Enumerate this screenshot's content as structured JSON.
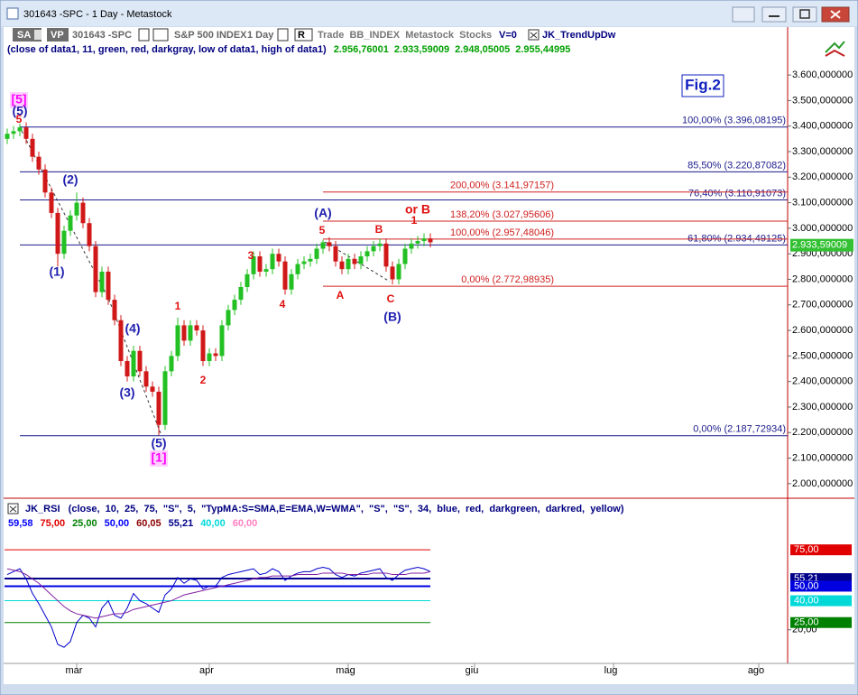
{
  "window": {
    "title": "301643 -SPC - 1 Day - Metastock"
  },
  "toolbar": {
    "sa": "SA",
    "vp": "VP",
    "symbol": "301643 -SPC",
    "name": "S&P 500 INDEX",
    "period": "1 Day",
    "r": "R",
    "info": "Trade  BB_INDEX  Metastock  Stocks",
    "v": "V=0",
    "indicator": "JK_TrendUpDw"
  },
  "chart_data": {
    "type": "candlestick",
    "header": "(close of data1, 11, green, red, darkgray, low of data1, high of data1)",
    "header_values": [
      "2.956,76001",
      "2.933,59009",
      "2.948,05005",
      "2.955,44995"
    ],
    "header_color": "#000080",
    "header_values_color": "#00a000",
    "categories": [
      null,
      null,
      null,
      null,
      null,
      null,
      null,
      null,
      null,
      null,
      null,
      "mar",
      null,
      null,
      null,
      null,
      null,
      null,
      null,
      null,
      null,
      null,
      null,
      null,
      null,
      null,
      null,
      null,
      null,
      null,
      null,
      null,
      "apr",
      null,
      null,
      null,
      null,
      null,
      null,
      null,
      null,
      null,
      null,
      null,
      null,
      null,
      null,
      null,
      null,
      null,
      null,
      null,
      null,
      null,
      "mag",
      null,
      null,
      null,
      null,
      null,
      null,
      null,
      null,
      null,
      null,
      null,
      null,
      null,
      null,
      null,
      null,
      null,
      null,
      null,
      "giu",
      null,
      null,
      null,
      null,
      null,
      null,
      null,
      null,
      null,
      null,
      null,
      null,
      null,
      null,
      null,
      null,
      null,
      null,
      null,
      null,
      null,
      "lug",
      null,
      null,
      null,
      null,
      null,
      null,
      null,
      null,
      null,
      null,
      null,
      null,
      null,
      null,
      null,
      null,
      null,
      null,
      null,
      null,
      null,
      null,
      "ago",
      null,
      null,
      null,
      null
    ],
    "open": [
      3350,
      3370,
      3380,
      3395,
      3350,
      3280,
      3230,
      3140,
      3060,
      2900,
      2990,
      3050,
      3100,
      3020,
      2930,
      2750,
      2830,
      2720,
      2640,
      2480,
      2420,
      2520,
      2440,
      2380,
      2360,
      2230,
      2440,
      2500,
      2620,
      2560,
      2620,
      2600,
      2480,
      2510,
      2500,
      2620,
      2680,
      2720,
      2770,
      2820,
      2890,
      2830,
      2840,
      2900,
      2870,
      2760,
      2820,
      2860,
      2870,
      2880,
      2920,
      2945,
      2930,
      2870,
      2840,
      2880,
      2860,
      2890,
      2910,
      2930,
      2940,
      2850,
      2800,
      2860,
      2920,
      2940,
      2950,
      2960,
      null,
      null,
      null,
      null,
      null,
      null,
      null,
      null,
      null,
      null,
      null,
      null,
      null,
      null,
      null,
      null,
      null,
      null,
      null,
      null,
      null,
      null,
      null,
      null,
      null,
      null,
      null,
      null,
      null,
      null,
      null,
      null,
      null,
      null,
      null,
      null,
      null,
      null,
      null,
      null,
      null,
      null,
      null,
      null,
      null,
      null,
      null,
      null,
      null,
      null,
      null,
      null,
      null,
      null,
      null,
      null
    ],
    "high": [
      3390,
      3400,
      3410,
      3415,
      3370,
      3300,
      3250,
      3160,
      3080,
      3010,
      3070,
      3140,
      3120,
      3040,
      2950,
      2850,
      2850,
      2740,
      2660,
      2500,
      2540,
      2540,
      2460,
      2400,
      2380,
      2460,
      2520,
      2650,
      2640,
      2640,
      2640,
      2620,
      2530,
      2530,
      2640,
      2700,
      2740,
      2790,
      2840,
      2910,
      2910,
      2860,
      2920,
      2920,
      2890,
      2840,
      2880,
      2890,
      2900,
      2940,
      2955,
      2965,
      2950,
      2890,
      2900,
      2900,
      2910,
      2930,
      2950,
      2960,
      2960,
      2870,
      2880,
      2940,
      2960,
      2970,
      2980,
      2980,
      null,
      null,
      null,
      null,
      null,
      null,
      null,
      null,
      null,
      null,
      null,
      null,
      null,
      null,
      null,
      null,
      null,
      null,
      null,
      null,
      null,
      null,
      null,
      null,
      null,
      null,
      null,
      null,
      null,
      null,
      null,
      null,
      null,
      null,
      null,
      null,
      null,
      null,
      null,
      null,
      null,
      null,
      null,
      null,
      null,
      null,
      null,
      null,
      null,
      null,
      null,
      null,
      null,
      null,
      null,
      null
    ],
    "low": [
      3330,
      3350,
      3360,
      3330,
      3260,
      3210,
      3120,
      3040,
      2850,
      2880,
      2970,
      3030,
      3000,
      2910,
      2730,
      2730,
      2700,
      2620,
      2460,
      2400,
      2400,
      2420,
      2360,
      2340,
      2190,
      2210,
      2420,
      2480,
      2540,
      2540,
      2580,
      2460,
      2460,
      2480,
      2480,
      2600,
      2660,
      2700,
      2750,
      2800,
      2810,
      2810,
      2820,
      2850,
      2740,
      2740,
      2800,
      2840,
      2850,
      2860,
      2900,
      2910,
      2850,
      2820,
      2820,
      2840,
      2840,
      2870,
      2890,
      2910,
      2830,
      2780,
      2780,
      2840,
      2900,
      2920,
      2930,
      2925,
      null,
      null,
      null,
      null,
      null,
      null,
      null,
      null,
      null,
      null,
      null,
      null,
      null,
      null,
      null,
      null,
      null,
      null,
      null,
      null,
      null,
      null,
      null,
      null,
      null,
      null,
      null,
      null,
      null,
      null,
      null,
      null,
      null,
      null,
      null,
      null,
      null,
      null,
      null,
      null,
      null,
      null,
      null,
      null,
      null,
      null,
      null,
      null,
      null,
      null,
      null,
      null,
      null,
      null,
      null,
      null
    ],
    "close": [
      3370,
      3380,
      3395,
      3350,
      3280,
      3230,
      3140,
      3060,
      2900,
      2990,
      3050,
      3100,
      3020,
      2930,
      2750,
      2830,
      2720,
      2640,
      2480,
      2420,
      2520,
      2440,
      2380,
      2360,
      2230,
      2440,
      2500,
      2620,
      2560,
      2620,
      2600,
      2480,
      2510,
      2500,
      2620,
      2680,
      2720,
      2770,
      2820,
      2890,
      2830,
      2840,
      2900,
      2870,
      2760,
      2820,
      2860,
      2870,
      2880,
      2920,
      2945,
      2930,
      2870,
      2840,
      2880,
      2860,
      2890,
      2910,
      2930,
      2940,
      2850,
      2800,
      2860,
      2920,
      2940,
      2950,
      2960,
      2945,
      null,
      null,
      null,
      null,
      null,
      null,
      null,
      null,
      null,
      null,
      null,
      null,
      null,
      null,
      null,
      null,
      null,
      null,
      null,
      null,
      null,
      null,
      null,
      null,
      null,
      null,
      null,
      null,
      null,
      null,
      null,
      null,
      null,
      null,
      null,
      null,
      null,
      null,
      null,
      null,
      null,
      null,
      null,
      null,
      null,
      null,
      null,
      null,
      null,
      null,
      null,
      null,
      null,
      null,
      null,
      null
    ],
    "up_color": "#22c022",
    "down_color": "#d01818",
    "ylim": [
      1950,
      3770
    ],
    "yticks": [
      {
        "value": 2000,
        "label": "2.000,000000"
      },
      {
        "value": 2100,
        "label": "2.100,000000"
      },
      {
        "value": 2200,
        "label": "2.200,000000"
      },
      {
        "value": 2300,
        "label": "2.300,000000"
      },
      {
        "value": 2400,
        "label": "2.400,000000"
      },
      {
        "value": 2500,
        "label": "2.500,000000"
      },
      {
        "value": 2600,
        "label": "2.600,000000"
      },
      {
        "value": 2700,
        "label": "2.700,000000"
      },
      {
        "value": 2800,
        "label": "2.800,000000"
      },
      {
        "value": 2900,
        "label": "2.900,000000"
      },
      {
        "value": 3000,
        "label": "3.000,000000"
      },
      {
        "value": 3100,
        "label": "3.100,000000"
      },
      {
        "value": 3200,
        "label": "3.200,000000"
      },
      {
        "value": 3300,
        "label": "3.300,000000"
      },
      {
        "value": 3400,
        "label": "3.400,000000"
      },
      {
        "value": 3500,
        "label": "3.500,000000"
      },
      {
        "value": 3600,
        "label": "3.600,000000"
      }
    ],
    "levels": [
      {
        "value": 3396.08195,
        "label": "100,00% (3.396,08195)",
        "color": "#1c1c8c"
      },
      {
        "value": 3220.87082,
        "label": "85,50% (3.220,87082)",
        "color": "#1c1c8c"
      },
      {
        "value": 3110.91073,
        "label": "76,40% (3.110,91073)",
        "color": "#1c1c8c"
      },
      {
        "value": 2934.49125,
        "label": "61,80% (2.934,49125)",
        "color": "#1c1c8c"
      },
      {
        "value": 2187.72934,
        "label": "0,00% (2.187,72934)",
        "color": "#1c1c8c"
      },
      {
        "value": 3141.97157,
        "label": "200,00% (3.141,97157)",
        "color": "#d02020"
      },
      {
        "value": 3027.95606,
        "label": "138,20% (3.027,95606)",
        "color": "#d02020"
      },
      {
        "value": 2957.48046,
        "label": "100,00% (2.957,48046)",
        "color": "#d02020"
      },
      {
        "value": 2772.98935,
        "label": "0,00% (2.772,98935)",
        "color": "#d02020"
      }
    ],
    "last_price": {
      "value": 2933.59009,
      "label": "2.933,59009",
      "color": "#33c033"
    },
    "annotations": [
      {
        "text": "[5]",
        "color": "#ff00ff"
      },
      {
        "text": "(5)",
        "color": "#2020b0"
      },
      {
        "text": "5",
        "color": "#e01010"
      },
      {
        "text": "(2)",
        "color": "#2020b0"
      },
      {
        "text": "(1)",
        "color": "#2020b0"
      },
      {
        "text": "(4)",
        "color": "#2020b0"
      },
      {
        "text": "(3)",
        "color": "#2020b0"
      },
      {
        "text": "(5)",
        "color": "#2020b0"
      },
      {
        "text": "[1]",
        "color": "#ff00ff"
      },
      {
        "text": "1",
        "color": "#e01010"
      },
      {
        "text": "2",
        "color": "#e01010"
      },
      {
        "text": "3",
        "color": "#e01010"
      },
      {
        "text": "4",
        "color": "#e01010"
      },
      {
        "text": "(A)",
        "color": "#2020b0"
      },
      {
        "text": "5",
        "color": "#e01010"
      },
      {
        "text": "A",
        "color": "#e01010"
      },
      {
        "text": "B",
        "color": "#e01010"
      },
      {
        "text": "C",
        "color": "#e01010"
      },
      {
        "text": "(B)",
        "color": "#2020b0"
      },
      {
        "text": "or B",
        "color": "#e01010"
      },
      {
        "text": "1",
        "color": "#e01010"
      },
      {
        "text": "Fig.2",
        "color": "#1020c0"
      }
    ],
    "indicator": {
      "title": "JK_RSI   (close,  10,  25,  75,  \"S\",  5,  \"TypMA:S=SMA,E=EMA,W=WMA\",  \"S\",  \"S\",  34,  blue,  red,  darkgreen,  darkred,  yellow)",
      "legend_values": [
        {
          "text": "59,58",
          "color": "#0000ff"
        },
        {
          "text": "75,00",
          "color": "#e00000"
        },
        {
          "text": "25,00",
          "color": "#008000"
        },
        {
          "text": "50,00",
          "color": "#0000ff"
        },
        {
          "text": "60,05",
          "color": "#8b0000"
        },
        {
          "text": "55,21",
          "color": "#00008b"
        },
        {
          "text": "40,00",
          "color": "#00d8d8"
        },
        {
          "text": "60,00",
          "color": "#ff80c0"
        }
      ],
      "ylim": [
        0,
        90
      ],
      "yticks": [
        {
          "value": 20,
          "label": "20,00"
        }
      ],
      "levels": [
        {
          "value": 75,
          "label": "75,00",
          "color": "#e00000"
        },
        {
          "value": 55.21,
          "label": "55,21",
          "color": "#00008b"
        },
        {
          "value": 50,
          "label": "50,00",
          "color": "#0000e0"
        },
        {
          "value": 40,
          "label": "40,00",
          "color": "#00d8d8"
        },
        {
          "value": 25,
          "label": "25,00",
          "color": "#008000"
        }
      ],
      "series": [
        {
          "color": "#0000cc",
          "values": [
            58,
            60,
            62,
            55,
            45,
            38,
            30,
            22,
            10,
            8,
            12,
            25,
            30,
            28,
            22,
            35,
            40,
            30,
            28,
            35,
            45,
            40,
            38,
            35,
            32,
            44,
            48,
            56,
            52,
            55,
            54,
            48,
            50,
            50,
            56,
            58,
            59,
            60,
            61,
            62,
            58,
            59,
            62,
            60,
            54,
            57,
            59,
            60,
            60,
            62,
            63,
            62,
            58,
            56,
            58,
            57,
            59,
            60,
            61,
            62,
            56,
            54,
            58,
            61,
            62,
            63,
            62,
            60,
            null,
            null,
            null,
            null,
            null,
            null,
            null,
            null,
            null,
            null,
            null,
            null,
            null,
            null,
            null,
            null,
            null,
            null,
            null,
            null,
            null,
            null,
            null,
            null,
            null,
            null,
            null,
            null,
            null,
            null,
            null,
            null,
            null,
            null,
            null,
            null,
            null,
            null,
            null,
            null,
            null,
            null,
            null,
            null,
            null,
            null,
            null,
            null,
            null,
            null,
            null,
            null,
            null,
            null,
            null,
            null
          ]
        },
        {
          "color": "#8020a0",
          "values": [
            62,
            61,
            60,
            58,
            55,
            52,
            48,
            44,
            40,
            36,
            33,
            31,
            30,
            29,
            28,
            29,
            30,
            31,
            31,
            32,
            34,
            35,
            36,
            37,
            38,
            39,
            40,
            42,
            44,
            45,
            46,
            47,
            48,
            49,
            50,
            51,
            52,
            53,
            54,
            55,
            56,
            56,
            57,
            57,
            57,
            57,
            58,
            58,
            58,
            58,
            59,
            59,
            59,
            59,
            58,
            58,
            58,
            58,
            59,
            59,
            59,
            58,
            58,
            58,
            59,
            59,
            59,
            60,
            null,
            null,
            null,
            null,
            null,
            null,
            null,
            null,
            null,
            null,
            null,
            null,
            null,
            null,
            null,
            null,
            null,
            null,
            null,
            null,
            null,
            null,
            null,
            null,
            null,
            null,
            null,
            null,
            null,
            null,
            null,
            null,
            null,
            null,
            null,
            null,
            null,
            null,
            null,
            null,
            null,
            null,
            null,
            null,
            null,
            null,
            null,
            null,
            null,
            null,
            null,
            null,
            null,
            null,
            null,
            null
          ]
        }
      ]
    }
  }
}
